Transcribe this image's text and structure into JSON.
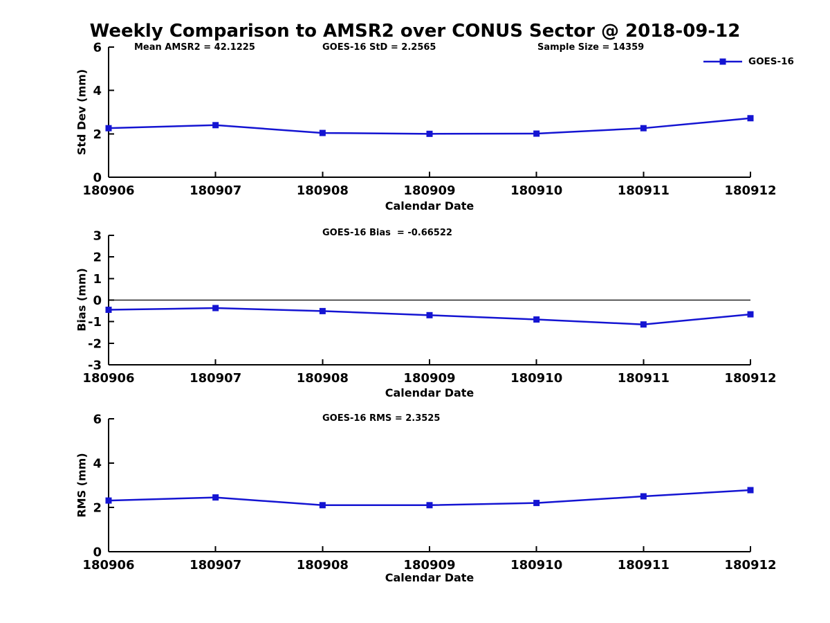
{
  "title": "Weekly Comparison to AMSR2 over CONUS Sector @ 2018-09-12",
  "colors": {
    "line": "#1414d2",
    "axis": "#000000",
    "text": "#000000",
    "background": "#ffffff"
  },
  "legend": {
    "label": "GOES-16"
  },
  "chart_data": [
    {
      "type": "line",
      "name": "std-dev",
      "title": "",
      "ylabel": "Std Dev (mm)",
      "xlabel": "Calendar Date",
      "categories": [
        "180906",
        "180907",
        "180908",
        "180909",
        "180910",
        "180911",
        "180912"
      ],
      "series": [
        {
          "name": "GOES-16",
          "values": [
            2.26,
            2.4,
            2.04,
            2.0,
            2.01,
            2.26,
            2.72
          ]
        }
      ],
      "ylim": [
        0,
        6
      ],
      "yticks": [
        0,
        2,
        4,
        6
      ],
      "zero_line": false,
      "grid": false,
      "legend_position": "top-right",
      "annotations": [
        {
          "text": "Mean AMSR2 = 42.1225"
        },
        {
          "text": "GOES-16 StD = 2.2565"
        },
        {
          "text": "Sample Size = 14359"
        }
      ]
    },
    {
      "type": "line",
      "name": "bias",
      "title": "",
      "ylabel": "Bias (mm)",
      "xlabel": "Calendar Date",
      "categories": [
        "180906",
        "180907",
        "180908",
        "180909",
        "180910",
        "180911",
        "180912"
      ],
      "series": [
        {
          "name": "GOES-16",
          "values": [
            -0.45,
            -0.37,
            -0.51,
            -0.7,
            -0.9,
            -1.13,
            -0.66
          ]
        }
      ],
      "ylim": [
        -3,
        3
      ],
      "yticks": [
        3,
        2,
        1,
        0,
        -1,
        -2,
        -3
      ],
      "zero_line": true,
      "grid": false,
      "annotations": [
        {
          "text": "GOES-16 Bias  = -0.66522"
        }
      ]
    },
    {
      "type": "line",
      "name": "rms",
      "title": "",
      "ylabel": "RMS (mm)",
      "xlabel": "Calendar Date",
      "categories": [
        "180906",
        "180907",
        "180908",
        "180909",
        "180910",
        "180911",
        "180912"
      ],
      "series": [
        {
          "name": "GOES-16",
          "values": [
            2.31,
            2.45,
            2.1,
            2.1,
            2.2,
            2.5,
            2.78
          ]
        }
      ],
      "ylim": [
        0,
        6
      ],
      "yticks": [
        0,
        2,
        4,
        6
      ],
      "zero_line": false,
      "grid": false,
      "annotations": [
        {
          "text": "GOES-16 RMS = 2.3525"
        }
      ]
    }
  ]
}
